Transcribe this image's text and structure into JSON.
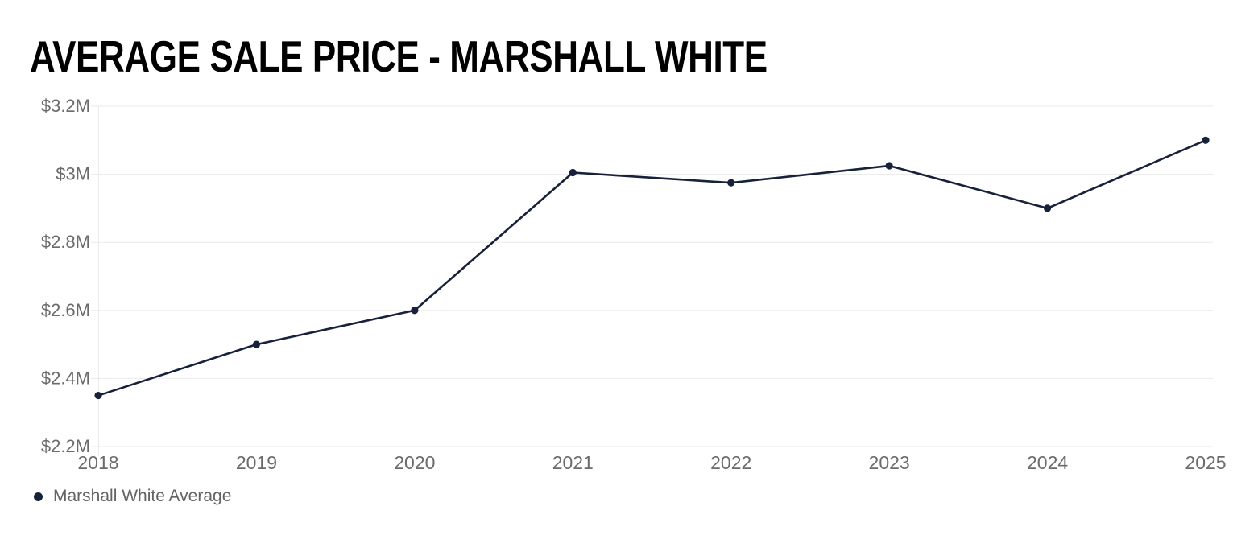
{
  "header": {
    "title": "AVERAGE SALE PRICE - MARSHALL WHITE"
  },
  "legend": {
    "label": "Marshall White Average"
  },
  "colors": {
    "background": "#ffffff",
    "title": "#000000",
    "series_line": "#17213a",
    "axis_labels": "#6b6b6b",
    "gridlines": "#eaeaea",
    "legend_text": "#636363"
  },
  "chart_data": {
    "type": "line",
    "title": "AVERAGE SALE PRICE - MARSHALL WHITE",
    "x": [
      "2018",
      "2019",
      "2020",
      "2021",
      "2022",
      "2023",
      "2024",
      "2025"
    ],
    "xlabel": "",
    "ylabel": "",
    "series": [
      {
        "name": "Marshall White Average",
        "color": "#17213a",
        "values": [
          2.35,
          2.5,
          2.6,
          3.005,
          2.975,
          3.025,
          2.9,
          3.1
        ],
        "values_unit": "millions, shown as $x.xM"
      }
    ],
    "ylim": [
      2.2,
      3.2
    ],
    "y_ticks": [
      {
        "value": 3.2,
        "label": "$3.2M"
      },
      {
        "value": 3.0,
        "label": "$3M"
      },
      {
        "value": 2.8,
        "label": "$2.8M"
      },
      {
        "value": 2.6,
        "label": "$2.6M"
      },
      {
        "value": 2.4,
        "label": "$2.4M"
      },
      {
        "value": 2.2,
        "label": "$2.2M"
      }
    ],
    "grid": "horizontal",
    "legend_position": "bottom-left",
    "marker": "filled-circle",
    "gridline_color": "#eaeaea",
    "axis_label_color": "#6b6b6b"
  }
}
